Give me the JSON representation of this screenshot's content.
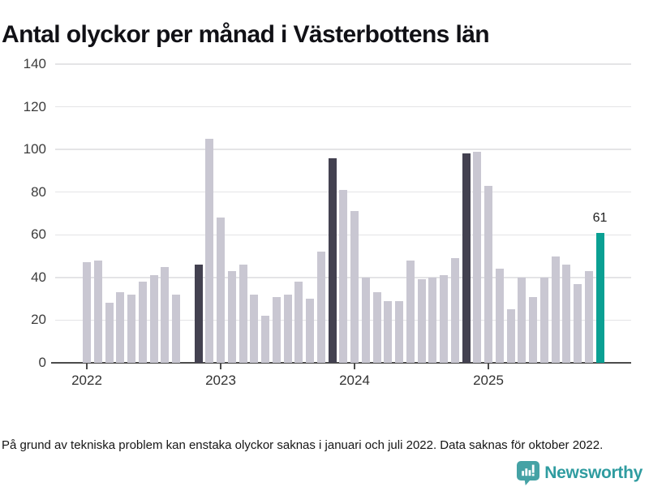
{
  "title": "Antal olyckor per månad i Västerbottens län",
  "footnote": "På grund av tekniska problem kan enstaka olyckor saknas i januari och juli 2022. Data saknas för oktober 2022.",
  "branding": {
    "name": "Newsworthy",
    "icon": "bar-chart-speech-bubble-icon",
    "icon_color": "#45a2a5",
    "text_color": "#2f9ca0"
  },
  "colors": {
    "bar_default": "#c9c7d2",
    "bar_dark": "#434150",
    "bar_highlight": "#0aa093",
    "gridline": "#e4e4e6",
    "axis": "#4b4b4b",
    "tick_text": "#3c3c3c",
    "title_text": "#111116"
  },
  "chart_data": {
    "type": "bar",
    "title": "Antal olyckor per månad i Västerbottens län",
    "xlabel": "",
    "ylabel": "",
    "ylim": [
      0,
      140
    ],
    "yticks": [
      0,
      20,
      40,
      60,
      80,
      100,
      120,
      140
    ],
    "grid": true,
    "legend": "none",
    "start_month": "2022-01",
    "x_unit": "month",
    "year_ticks": [
      {
        "label": "2022",
        "month_index": 0
      },
      {
        "label": "2023",
        "month_index": 12
      },
      {
        "label": "2024",
        "month_index": 24
      },
      {
        "label": "2025",
        "month_index": 36
      }
    ],
    "values": [
      47,
      48,
      28,
      33,
      32,
      38,
      41,
      45,
      32,
      null,
      46,
      105,
      68,
      43,
      46,
      32,
      22,
      31,
      32,
      38,
      30,
      52,
      96,
      81,
      71,
      40,
      33,
      29,
      29,
      48,
      39,
      40,
      41,
      49,
      98,
      99,
      83,
      44,
      25,
      40,
      31,
      40,
      50,
      46,
      37,
      43,
      61
    ],
    "missing_months": [
      "2022-10"
    ],
    "dark_month_indices": [
      10,
      22,
      34
    ],
    "highlight": {
      "index": 46,
      "month": "2025-11",
      "value": 61,
      "label": "61"
    }
  }
}
